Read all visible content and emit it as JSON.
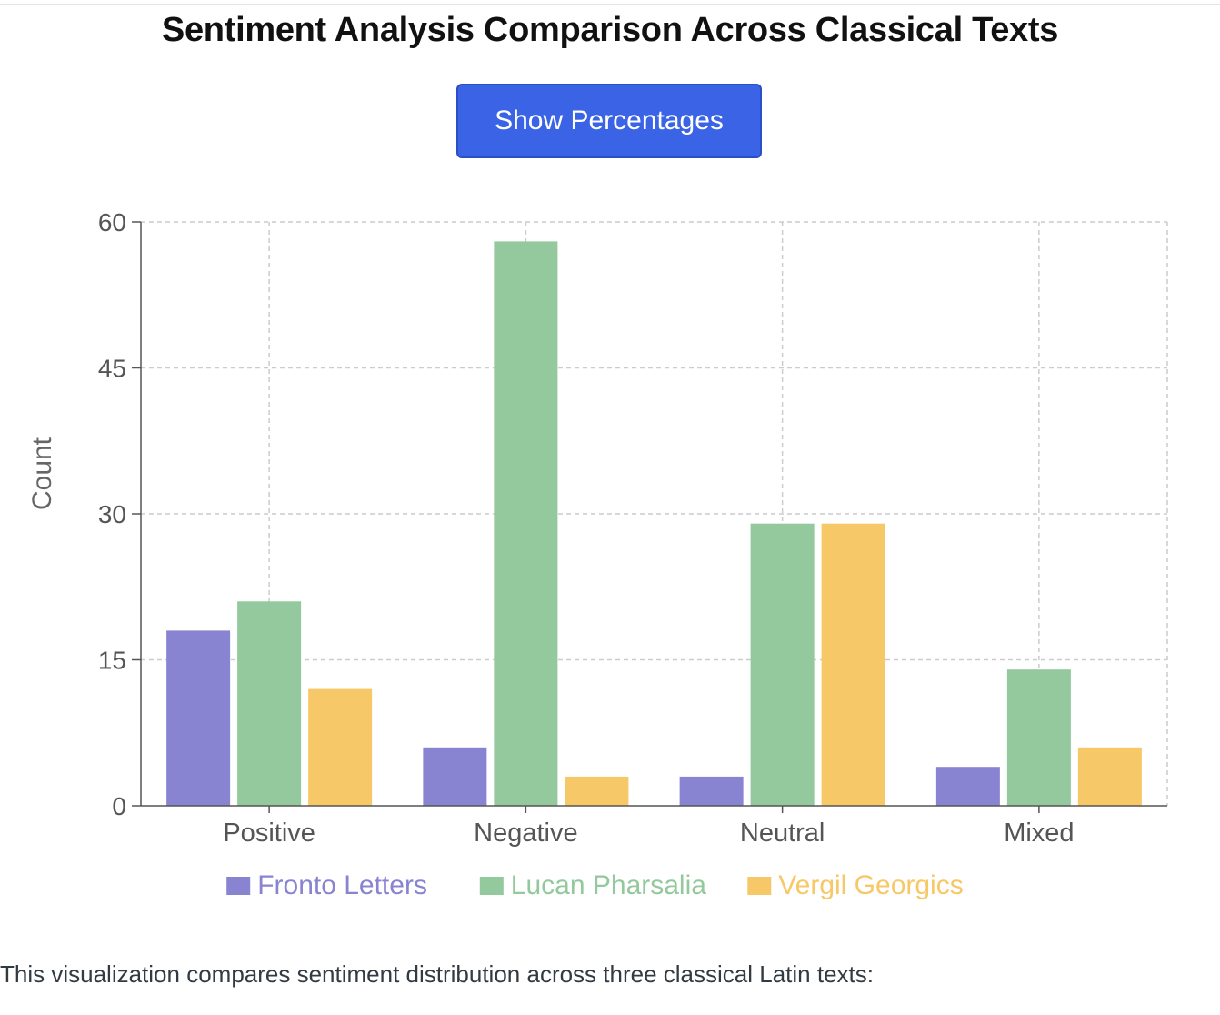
{
  "title": "Sentiment Analysis Comparison Across Classical Texts",
  "toggle_button_label": "Show Percentages",
  "caption": "This visualization compares sentiment distribution across three classical Latin texts:",
  "chart_data": {
    "type": "bar",
    "title": "Sentiment Analysis Comparison Across Classical Texts",
    "xlabel": "",
    "ylabel": "Count",
    "ylim": [
      0,
      60
    ],
    "yticks": [
      0,
      15,
      30,
      45,
      60
    ],
    "grid": true,
    "legend_position": "bottom-center",
    "categories": [
      "Positive",
      "Negative",
      "Neutral",
      "Mixed"
    ],
    "series": [
      {
        "name": "Fronto Letters",
        "color": "#8884d2",
        "values": [
          18,
          6,
          3,
          4
        ]
      },
      {
        "name": "Lucan Pharsalia",
        "color": "#94c89d",
        "values": [
          21,
          58,
          29,
          14
        ]
      },
      {
        "name": "Vergil Georgics",
        "color": "#f7c868",
        "values": [
          12,
          3,
          29,
          6
        ]
      }
    ]
  }
}
